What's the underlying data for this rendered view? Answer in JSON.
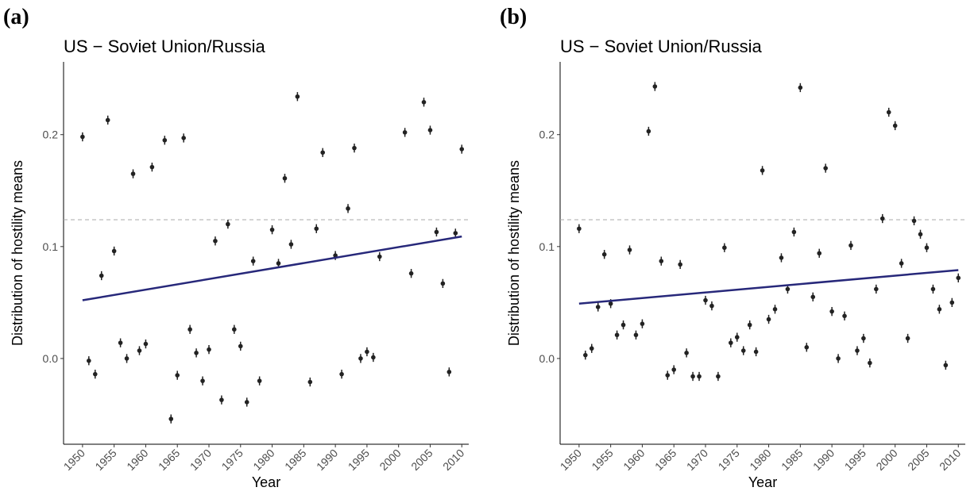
{
  "chart_data": [
    {
      "type": "scatter",
      "panel_label": "(a)",
      "title": "US − Soviet Union/Russia",
      "x_label": "Year",
      "y_label": "Distribution of hostility means",
      "x": [
        1950,
        1951,
        1952,
        1953,
        1954,
        1955,
        1956,
        1957,
        1958,
        1959,
        1960,
        1961,
        1963,
        1964,
        1965,
        1966,
        1967,
        1968,
        1969,
        1970,
        1971,
        1972,
        1973,
        1974,
        1975,
        1976,
        1977,
        1978,
        1980,
        1981,
        1982,
        1983,
        1984,
        1986,
        1987,
        1988,
        1990,
        1991,
        1992,
        1993,
        1994,
        1995,
        1996,
        1997,
        2001,
        2002,
        2004,
        2005,
        2006,
        2007,
        2008,
        2009,
        2010
      ],
      "values": [
        0.198,
        -0.002,
        -0.014,
        0.074,
        0.213,
        0.096,
        0.014,
        0.0,
        0.165,
        0.007,
        0.013,
        0.171,
        0.195,
        -0.054,
        -0.015,
        0.197,
        0.026,
        0.005,
        -0.02,
        0.008,
        0.105,
        -0.037,
        0.12,
        0.026,
        0.011,
        -0.039,
        0.087,
        -0.02,
        0.115,
        0.085,
        0.161,
        0.102,
        0.234,
        -0.021,
        0.116,
        0.184,
        0.092,
        -0.014,
        0.134,
        0.188,
        0.0,
        0.006,
        0.001,
        0.091,
        0.202,
        0.076,
        0.229,
        0.204,
        0.113,
        0.067,
        -0.012,
        0.112,
        0.187
      ],
      "error": 0.004,
      "color": "#222222",
      "trend": {
        "x": [
          1950,
          2010
        ],
        "values": [
          0.052,
          0.109
        ],
        "color": "#27287a"
      },
      "hline": 0.124,
      "xlim": [
        1947,
        2011.1
      ],
      "ylim": [
        -0.0766,
        0.265
      ],
      "xticks": [
        1950,
        1955,
        1960,
        1965,
        1970,
        1975,
        1980,
        1985,
        1990,
        1995,
        2000,
        2005,
        2010
      ],
      "yticks": [
        {
          "value": 0,
          "label": "0.0"
        },
        0.1,
        0.2
      ]
    },
    {
      "type": "scatter",
      "panel_label": "(b)",
      "title": "US − Soviet Union/Russia",
      "x_label": "Year",
      "y_label": "Distribution of hostility means",
      "x": [
        1950,
        1951,
        1952,
        1953,
        1954,
        1955,
        1956,
        1957,
        1958,
        1959,
        1960,
        1961,
        1962,
        1963,
        1964,
        1965,
        1966,
        1967,
        1968,
        1969,
        1970,
        1971,
        1972,
        1973,
        1974,
        1975,
        1976,
        1977,
        1978,
        1979,
        1980,
        1981,
        1982,
        1983,
        1984,
        1985,
        1986,
        1987,
        1988,
        1989,
        1990,
        1991,
        1992,
        1993,
        1994,
        1995,
        1996,
        1997,
        1998,
        1999,
        2000,
        2001,
        2002,
        2003,
        2004,
        2005,
        2006,
        2007,
        2008,
        2009,
        2010
      ],
      "values": [
        0.116,
        0.003,
        0.009,
        0.046,
        0.093,
        0.049,
        0.021,
        0.03,
        0.097,
        0.021,
        0.031,
        0.203,
        0.243,
        0.087,
        -0.015,
        -0.01,
        0.084,
        0.005,
        -0.016,
        -0.016,
        0.052,
        0.047,
        -0.016,
        0.099,
        0.014,
        0.019,
        0.007,
        0.03,
        0.006,
        0.168,
        0.035,
        0.044,
        0.09,
        0.062,
        0.113,
        0.242,
        0.01,
        0.055,
        0.094,
        0.17,
        0.042,
        0.0,
        0.038,
        0.101,
        0.007,
        0.018,
        -0.004,
        0.062,
        0.125,
        0.22,
        0.208,
        0.085,
        0.018,
        0.123,
        0.111,
        0.099,
        0.062,
        0.044,
        -0.006,
        0.05,
        0.072
      ],
      "error": 0.004,
      "color": "#222222",
      "trend": {
        "x": [
          1950,
          2010
        ],
        "values": [
          0.049,
          0.079
        ],
        "color": "#27287a"
      },
      "hline": 0.124,
      "xlim": [
        1947,
        2011.1
      ],
      "ylim": [
        -0.0766,
        0.265
      ],
      "xticks": [
        1950,
        1955,
        1960,
        1965,
        1970,
        1975,
        1980,
        1985,
        1990,
        1995,
        2000,
        2005,
        2010
      ],
      "yticks": [
        {
          "value": 0,
          "label": "0.0"
        },
        0.1,
        0.2
      ]
    }
  ]
}
